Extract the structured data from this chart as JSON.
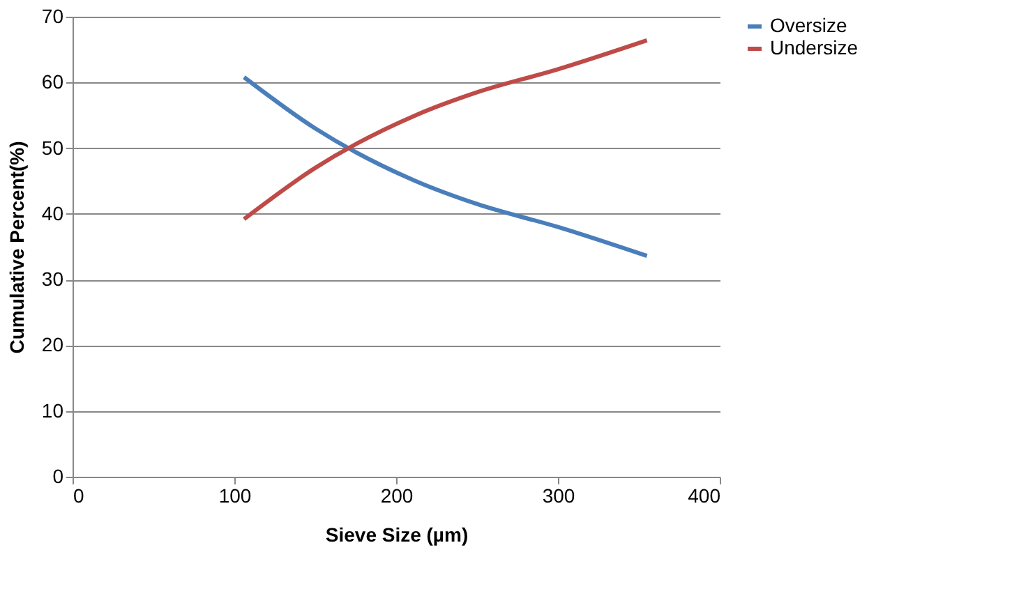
{
  "chart_data": {
    "type": "line",
    "xlabel": "Sieve Size (µm)",
    "ylabel": "Cumulative Percent(%)",
    "x": [
      106,
      150,
      212,
      250,
      300,
      355
    ],
    "series": [
      {
        "name": "Oversize",
        "color": "#4a7ebb",
        "values": [
          60.8,
          53,
          45,
          41.5,
          38,
          33.6
        ]
      },
      {
        "name": "Undersize",
        "color": "#be4b48",
        "values": [
          39.2,
          47,
          55,
          58.5,
          62,
          66.4
        ]
      }
    ],
    "xlim": [
      0,
      400
    ],
    "xticks": [
      0,
      100,
      200,
      300,
      400
    ],
    "ylim": [
      0,
      70
    ],
    "yticks": [
      0,
      10,
      20,
      30,
      40,
      50,
      60,
      70
    ],
    "grid": "y",
    "legend": "right",
    "marker": "none",
    "line_style": "solid"
  }
}
